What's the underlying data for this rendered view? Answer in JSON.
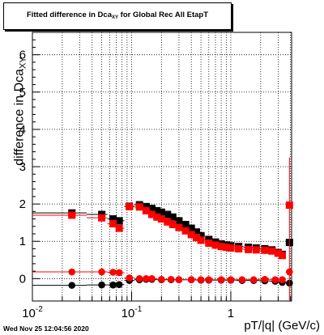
{
  "header": {
    "title_prefix": "Fitted difference in Dca",
    "title_sub": "XY",
    "title_suffix": " for Global Rec All EtapT"
  },
  "footer": {
    "timestamp": "Wed Nov 25 12:04:56 2020"
  },
  "colors": {
    "series_black": "#000000",
    "series_red": "#ff0000",
    "grid": "#000000"
  },
  "chart_data": {
    "type": "scatter",
    "title": "Fitted difference in DcaXY for Global Rec All EtapT",
    "xlabel": "pT/|q| (GeV/c)",
    "ylabel_main": "difference in Dca",
    "ylabel_sub": "XY",
    "xscale": "log",
    "xlim": [
      0.01,
      4.1
    ],
    "ylim": [
      -0.6,
      6.6
    ],
    "grid": true,
    "x_ticks": [
      {
        "value": 0.01,
        "label": "10",
        "exp": "-2"
      },
      {
        "value": 0.1,
        "label": "10",
        "exp": "-1"
      },
      {
        "value": 1,
        "label": "1",
        "exp": ""
      }
    ],
    "y_ticks": [
      0,
      1,
      2,
      3,
      4,
      5,
      6
    ],
    "series": [
      {
        "color": "#000000",
        "marker": "square",
        "points": [
          {
            "x": 0.025,
            "y": 1.76
          },
          {
            "x": 0.05,
            "y": 1.72
          },
          {
            "x": 0.065,
            "y": 1.6
          },
          {
            "x": 0.075,
            "y": 1.55
          },
          {
            "x": 0.095,
            "y": 1.94
          },
          {
            "x": 0.12,
            "y": 1.98
          },
          {
            "x": 0.14,
            "y": 1.93
          },
          {
            "x": 0.16,
            "y": 1.88
          },
          {
            "x": 0.18,
            "y": 1.82
          },
          {
            "x": 0.2,
            "y": 1.78
          },
          {
            "x": 0.23,
            "y": 1.72
          },
          {
            "x": 0.26,
            "y": 1.65
          },
          {
            "x": 0.3,
            "y": 1.55
          },
          {
            "x": 0.35,
            "y": 1.45
          },
          {
            "x": 0.4,
            "y": 1.35
          },
          {
            "x": 0.45,
            "y": 1.25
          },
          {
            "x": 0.5,
            "y": 1.15
          },
          {
            "x": 0.6,
            "y": 1.05
          },
          {
            "x": 0.7,
            "y": 0.98
          },
          {
            "x": 0.8,
            "y": 0.93
          },
          {
            "x": 0.9,
            "y": 0.9
          },
          {
            "x": 1.0,
            "y": 0.88
          },
          {
            "x": 1.2,
            "y": 0.86
          },
          {
            "x": 1.5,
            "y": 0.84
          },
          {
            "x": 1.8,
            "y": 0.82
          },
          {
            "x": 2.2,
            "y": 0.8
          },
          {
            "x": 2.6,
            "y": 0.77
          },
          {
            "x": 3.0,
            "y": 0.7
          },
          {
            "x": 3.3,
            "y": 0.65
          },
          {
            "x": 3.9,
            "y": 0.97
          }
        ]
      },
      {
        "color": "#ff0000",
        "marker": "square",
        "points": [
          {
            "x": 0.025,
            "y": 1.7
          },
          {
            "x": 0.05,
            "y": 1.63
          },
          {
            "x": 0.065,
            "y": 1.47
          },
          {
            "x": 0.075,
            "y": 1.35
          },
          {
            "x": 0.095,
            "y": 1.93
          },
          {
            "x": 0.12,
            "y": 1.92
          },
          {
            "x": 0.14,
            "y": 1.82
          },
          {
            "x": 0.16,
            "y": 1.72
          },
          {
            "x": 0.18,
            "y": 1.65
          },
          {
            "x": 0.2,
            "y": 1.6
          },
          {
            "x": 0.23,
            "y": 1.52
          },
          {
            "x": 0.26,
            "y": 1.45
          },
          {
            "x": 0.3,
            "y": 1.37
          },
          {
            "x": 0.35,
            "y": 1.28
          },
          {
            "x": 0.4,
            "y": 1.18
          },
          {
            "x": 0.45,
            "y": 1.1
          },
          {
            "x": 0.5,
            "y": 1.03
          },
          {
            "x": 0.6,
            "y": 0.95
          },
          {
            "x": 0.7,
            "y": 0.9
          },
          {
            "x": 0.8,
            "y": 0.86
          },
          {
            "x": 0.9,
            "y": 0.84
          },
          {
            "x": 1.0,
            "y": 0.82
          },
          {
            "x": 1.2,
            "y": 0.8
          },
          {
            "x": 1.5,
            "y": 0.78
          },
          {
            "x": 1.8,
            "y": 0.77
          },
          {
            "x": 2.2,
            "y": 0.76
          },
          {
            "x": 2.6,
            "y": 0.74
          },
          {
            "x": 3.0,
            "y": 0.68
          },
          {
            "x": 3.3,
            "y": 0.62
          },
          {
            "x": 3.9,
            "y": 1.97
          }
        ]
      },
      {
        "color": "#000000",
        "marker": "circle",
        "points": [
          {
            "x": 0.025,
            "y": -0.18
          },
          {
            "x": 0.05,
            "y": -0.17
          },
          {
            "x": 0.065,
            "y": -0.17
          },
          {
            "x": 0.075,
            "y": -0.16
          },
          {
            "x": 0.095,
            "y": -0.05
          },
          {
            "x": 0.12,
            "y": -0.03
          },
          {
            "x": 0.14,
            "y": -0.02
          },
          {
            "x": 0.16,
            "y": -0.02
          },
          {
            "x": 0.2,
            "y": -0.03
          },
          {
            "x": 0.25,
            "y": -0.03
          },
          {
            "x": 0.3,
            "y": -0.03
          },
          {
            "x": 0.4,
            "y": -0.03
          },
          {
            "x": 0.5,
            "y": -0.04
          },
          {
            "x": 0.6,
            "y": -0.04
          },
          {
            "x": 0.8,
            "y": -0.04
          },
          {
            "x": 1.0,
            "y": -0.04
          },
          {
            "x": 1.3,
            "y": -0.05
          },
          {
            "x": 1.7,
            "y": -0.05
          },
          {
            "x": 2.2,
            "y": -0.06
          },
          {
            "x": 2.8,
            "y": -0.07
          },
          {
            "x": 3.3,
            "y": -0.1
          },
          {
            "x": 3.9,
            "y": -0.12
          }
        ]
      },
      {
        "color": "#ff0000",
        "marker": "circle",
        "points": [
          {
            "x": 0.025,
            "y": 0.18
          },
          {
            "x": 0.05,
            "y": 0.18
          },
          {
            "x": 0.065,
            "y": 0.17
          },
          {
            "x": 0.075,
            "y": 0.16
          },
          {
            "x": 0.095,
            "y": 0.02
          },
          {
            "x": 0.12,
            "y": 0.0
          },
          {
            "x": 0.14,
            "y": 0.0
          },
          {
            "x": 0.16,
            "y": 0.0
          },
          {
            "x": 0.2,
            "y": -0.02
          },
          {
            "x": 0.25,
            "y": -0.02
          },
          {
            "x": 0.3,
            "y": -0.03
          },
          {
            "x": 0.4,
            "y": -0.03
          },
          {
            "x": 0.5,
            "y": -0.03
          },
          {
            "x": 0.6,
            "y": -0.03
          },
          {
            "x": 0.8,
            "y": -0.03
          },
          {
            "x": 1.0,
            "y": -0.03
          },
          {
            "x": 1.3,
            "y": -0.03
          },
          {
            "x": 1.7,
            "y": -0.03
          },
          {
            "x": 2.2,
            "y": -0.02
          },
          {
            "x": 2.8,
            "y": -0.03
          },
          {
            "x": 3.3,
            "y": -0.03
          },
          {
            "x": 3.9,
            "y": 0.18
          }
        ]
      }
    ]
  }
}
